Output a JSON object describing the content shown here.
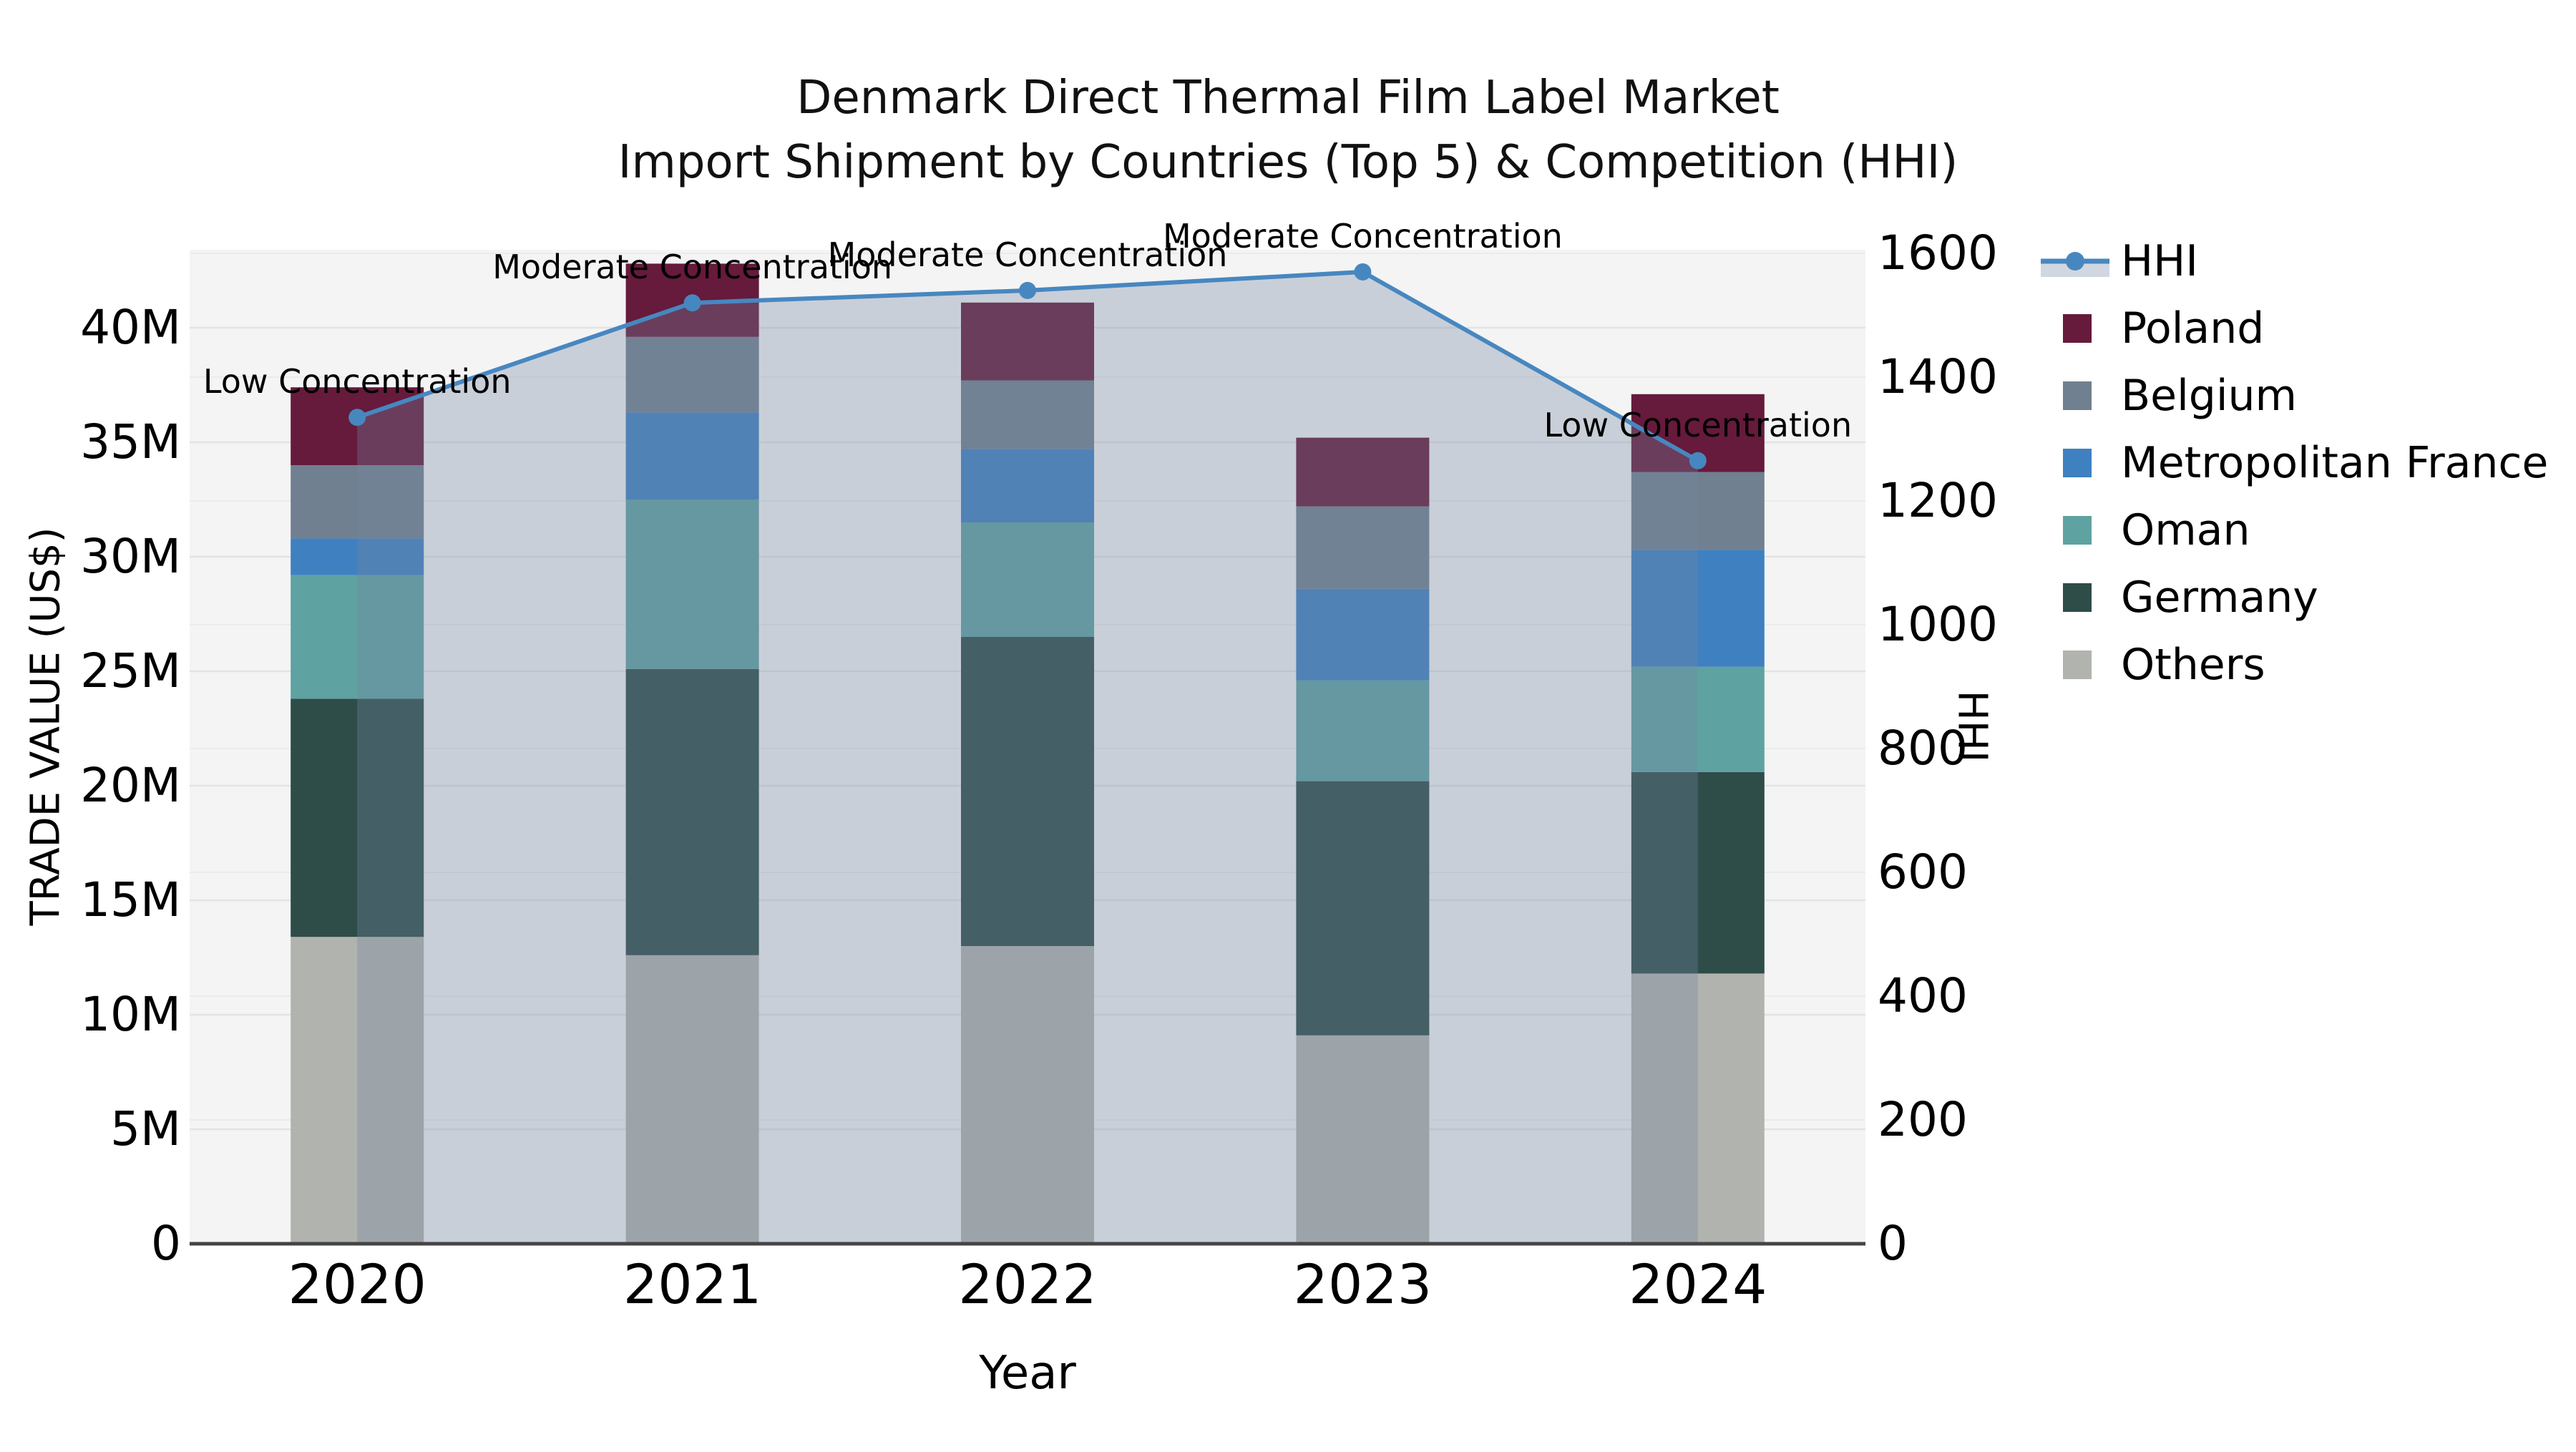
{
  "title": {
    "line1": "Denmark Direct Thermal Film Label Market",
    "line2": "Import Shipment by Countries (Top 5) & Competition (HHI)"
  },
  "axes": {
    "x": {
      "label": "Year",
      "tick_labels": [
        "2020",
        "2021",
        "2022",
        "2023",
        "2024"
      ]
    },
    "y_left": {
      "label": "TRADE VALUE (US$)",
      "tick_labels": [
        "0",
        "5M",
        "10M",
        "15M",
        "20M",
        "25M",
        "30M",
        "35M",
        "40M"
      ]
    },
    "y_right": {
      "label": "HHI",
      "tick_labels": [
        "0",
        "200",
        "400",
        "600",
        "800",
        "1000",
        "1200",
        "1400",
        "1600"
      ]
    }
  },
  "legend": {
    "items": [
      {
        "label": "HHI",
        "type": "line",
        "color": "#4787c0"
      },
      {
        "label": "Poland",
        "type": "square",
        "color": "#661a3c"
      },
      {
        "label": "Belgium",
        "type": "square",
        "color": "#708090"
      },
      {
        "label": "Metropolitan France",
        "type": "square",
        "color": "#3f80c1"
      },
      {
        "label": "Oman",
        "type": "square",
        "color": "#5fa2a2"
      },
      {
        "label": "Germany",
        "type": "square",
        "color": "#2e4c48"
      },
      {
        "label": "Others",
        "type": "square",
        "color": "#b0b3ae"
      }
    ]
  },
  "chart_data": {
    "type": "bar",
    "subtype": "stacked-bars-with-line-area-overlay",
    "title": "Denmark Direct Thermal Film Label Market Import Shipment by Countries (Top 5) & Competition (HHI)",
    "xlabel": "Year",
    "ylabel": "TRADE VALUE (US$)",
    "y2label": "HHI",
    "categories": [
      "2020",
      "2021",
      "2022",
      "2023",
      "2024"
    ],
    "value_unit": "US$ millions",
    "series": [
      {
        "name": "Others",
        "color": "#b0b3ae",
        "values": [
          13.4,
          12.6,
          13.0,
          9.1,
          11.8
        ]
      },
      {
        "name": "Germany",
        "color": "#2e4c48",
        "values": [
          10.4,
          12.5,
          13.5,
          11.1,
          8.8
        ]
      },
      {
        "name": "Oman",
        "color": "#5fa2a2",
        "values": [
          5.4,
          7.4,
          5.0,
          4.4,
          4.6
        ]
      },
      {
        "name": "Metropolitan France",
        "color": "#3f80c1",
        "values": [
          1.6,
          3.8,
          3.2,
          4.0,
          5.1
        ]
      },
      {
        "name": "Belgium",
        "color": "#708090",
        "values": [
          3.2,
          3.3,
          3.0,
          3.6,
          3.4
        ]
      },
      {
        "name": "Poland",
        "color": "#661a3c",
        "values": [
          3.4,
          3.2,
          3.4,
          3.0,
          3.4
        ]
      }
    ],
    "stack_order": "bottom_to_top",
    "bar_totals_millions": [
      37.4,
      42.8,
      41.1,
      35.2,
      37.1
    ],
    "line_series": {
      "name": "HHI",
      "color": "#4787c0",
      "area_fill": "rgba(115,135,162,0.33)",
      "values": [
        1335,
        1520,
        1540,
        1570,
        1265
      ],
      "axis": "right"
    },
    "annotations": [
      {
        "x": "2020",
        "text": "Low Concentration"
      },
      {
        "x": "2021",
        "text": "Moderate Concentration"
      },
      {
        "x": "2022",
        "text": "Moderate Concentration"
      },
      {
        "x": "2023",
        "text": "Moderate Concentration"
      },
      {
        "x": "2024",
        "text": "Low Concentration"
      }
    ],
    "ylim_left_millions": [
      0,
      43.4
    ],
    "ylim_right": [
      0,
      1605
    ],
    "grid": true,
    "legend_position": "right-outside"
  },
  "colors": {
    "figure_bg": "#ffffff",
    "plot_bg": "#f4f4f4",
    "grid_left_axis": "#e3e3e3",
    "grid_right_axis": "#ebebeb",
    "bottom_spine": "#444444",
    "text": "#000000"
  }
}
